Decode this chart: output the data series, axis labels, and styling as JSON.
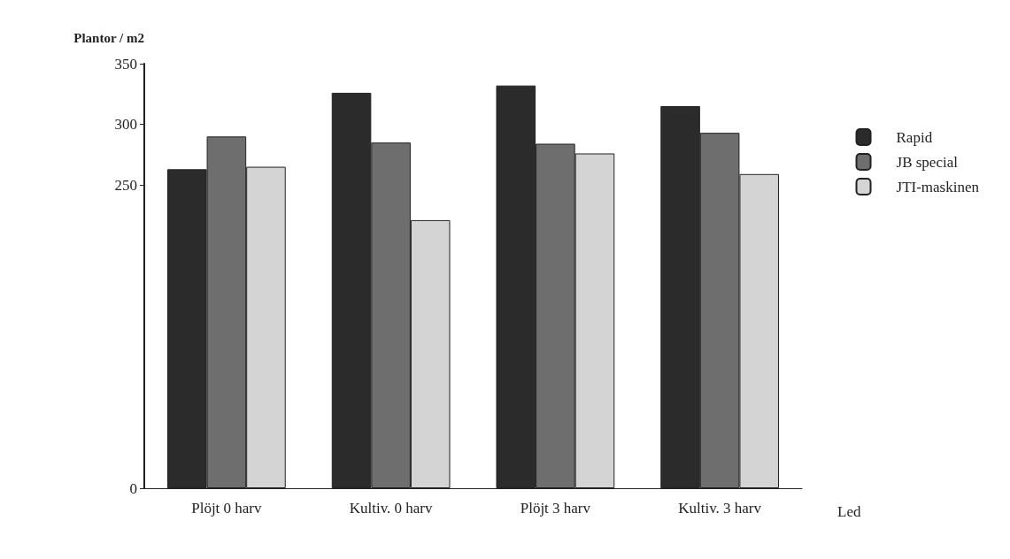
{
  "chart_data": {
    "type": "bar",
    "ylabel": "Plantor / m2",
    "xlabel": "Led",
    "categories": [
      "Plöjt 0 harv",
      "Kultiv. 0 harv",
      "Plöjt 3 harv",
      "Kultiv. 3 harv"
    ],
    "series": [
      {
        "name": "Rapid",
        "color": "#2b2b2b",
        "values": [
          263,
          326,
          332,
          315
        ]
      },
      {
        "name": "JB special",
        "color": "#6e6e6e",
        "values": [
          290,
          285,
          284,
          293
        ]
      },
      {
        "name": "JTI-maskinen",
        "color": "#d4d4d4",
        "values": [
          265,
          221,
          276,
          259
        ]
      }
    ],
    "ylim": [
      0,
      350
    ],
    "yticks": [
      0,
      250,
      300,
      350
    ],
    "grid": false,
    "legend": "top right"
  }
}
